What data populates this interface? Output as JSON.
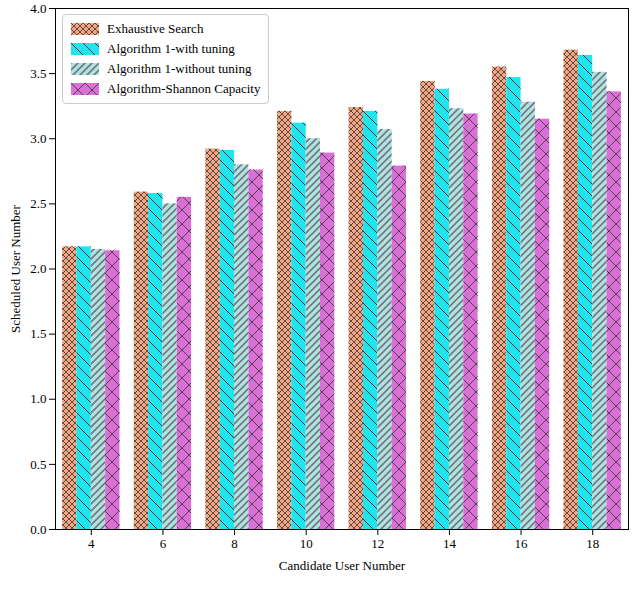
{
  "chart_data": {
    "type": "bar",
    "x_label": "Candidate User Number",
    "y_label": "Scheduled User Number",
    "categories": [
      "4",
      "6",
      "8",
      "10",
      "12",
      "14",
      "16",
      "18"
    ],
    "series": [
      {
        "name": "Exhaustive Search",
        "color": "#f4a582",
        "values": [
          2.17,
          2.59,
          2.92,
          3.21,
          3.24,
          3.44,
          3.55,
          3.68
        ]
      },
      {
        "name": "Algorithm 1-with tuning",
        "color": "#1ee6f0",
        "values": [
          2.17,
          2.58,
          2.91,
          3.12,
          3.21,
          3.38,
          3.47,
          3.64
        ]
      },
      {
        "name": "Algorithm 1-without tuning",
        "color": "#aee3e6",
        "values": [
          2.15,
          2.5,
          2.8,
          3.0,
          3.07,
          3.23,
          3.28,
          3.51
        ]
      },
      {
        "name": "Algorithm-Shannon Capacity",
        "color": "#da70d6",
        "values": [
          2.14,
          2.55,
          2.76,
          2.89,
          2.79,
          3.19,
          3.15,
          3.36
        ]
      }
    ],
    "ylim": [
      0,
      4
    ],
    "yticks": [
      {
        "value": 0,
        "label": "0.0"
      },
      0.5,
      {
        "value": 1,
        "label": "1.0"
      },
      1.5,
      {
        "value": 2,
        "label": "2.0"
      },
      2.5,
      {
        "value": 3,
        "label": "3.0"
      },
      3.5,
      {
        "value": 4,
        "label": "4.0"
      }
    ],
    "legend": "upper left",
    "grid": false
  }
}
